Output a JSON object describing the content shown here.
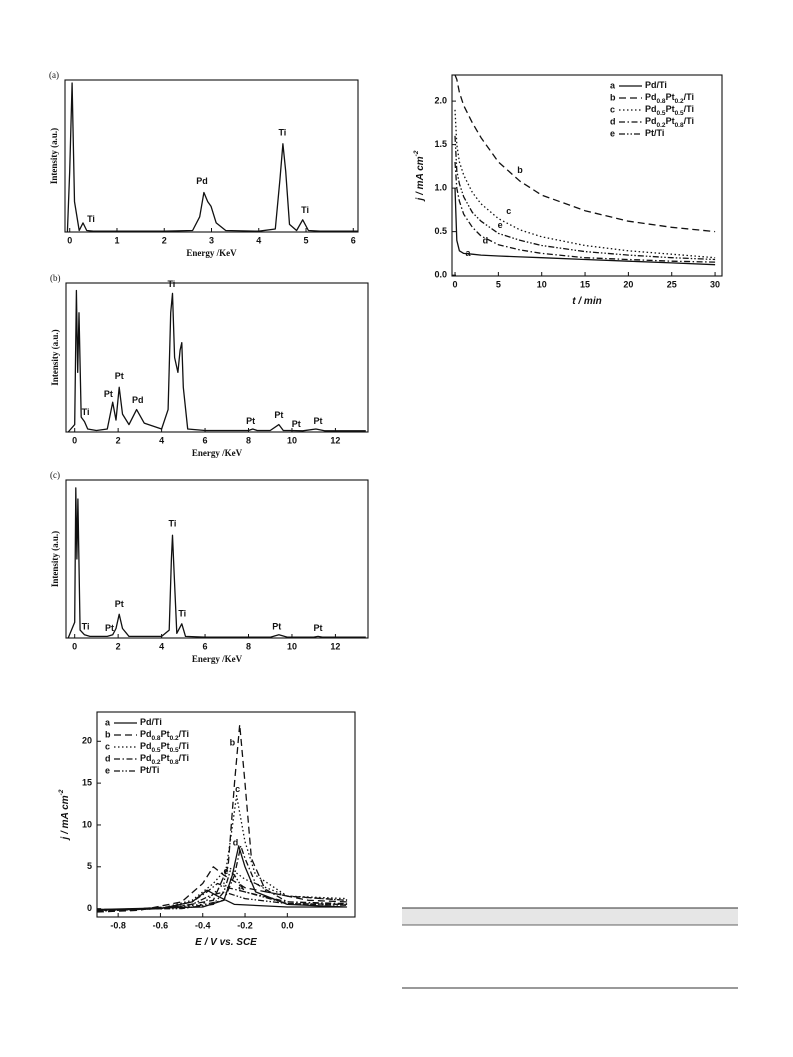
{
  "chart_data": [
    {
      "type": "line",
      "panel_label": "(a)",
      "x_label": "Energy /KeV",
      "y_label": "Intensity (a.u.)",
      "color": "#111111",
      "xlim": [
        -0.1,
        6.1
      ],
      "ylim": [
        0,
        100
      ],
      "xticks": [
        0,
        1,
        2,
        3,
        4,
        5,
        6
      ],
      "x": [
        -0.05,
        0,
        0.05,
        0.1,
        0.2,
        0.28,
        0.36,
        0.5,
        1,
        2,
        2.6,
        2.75,
        2.84,
        2.92,
        2.99,
        3.1,
        3.3,
        4,
        4.35,
        4.45,
        4.51,
        4.57,
        4.65,
        4.8,
        4.93,
        5.05,
        5.3,
        6,
        6.1
      ],
      "values": [
        0,
        40,
        98,
        20,
        1,
        6,
        1,
        0.5,
        0.5,
        0.5,
        1,
        10,
        26,
        20,
        17,
        6,
        1,
        0.5,
        2,
        35,
        58,
        40,
        5,
        1,
        8,
        1,
        0.5,
        0.5,
        0.5
      ],
      "annotations": [
        {
          "text": "Ti",
          "x": 0.45,
          "y": 8
        },
        {
          "text": "Pd",
          "x": 2.8,
          "y": 33
        },
        {
          "text": "Ti",
          "x": 4.5,
          "y": 65
        },
        {
          "text": "Ti",
          "x": 4.98,
          "y": 14
        }
      ]
    },
    {
      "type": "line",
      "panel_label": "(b)",
      "x_label": "Energy /KeV",
      "y_label": "Intensity (a.u.)",
      "color": "#111111",
      "xlim": [
        -0.4,
        13.5
      ],
      "ylim": [
        0,
        100
      ],
      "xticks": [
        0,
        2,
        4,
        6,
        8,
        10,
        12
      ],
      "x": [
        -0.3,
        0,
        0.08,
        0.14,
        0.2,
        0.3,
        0.45,
        0.6,
        1,
        1.5,
        1.75,
        1.9,
        2.05,
        2.2,
        2.5,
        2.85,
        3.2,
        4,
        4.3,
        4.42,
        4.5,
        4.6,
        4.75,
        4.85,
        4.93,
        5.0,
        5.2,
        6,
        8,
        8.2,
        8.4,
        9,
        9.4,
        9.6,
        9.9,
        10.5,
        11.1,
        11.5,
        13.4
      ],
      "values": [
        0,
        5,
        95,
        40,
        80,
        10,
        7,
        2,
        1,
        2,
        20,
        8,
        30,
        12,
        5,
        15,
        6,
        2,
        15,
        80,
        93,
        50,
        40,
        55,
        60,
        30,
        2,
        1,
        1,
        2,
        1,
        1,
        5,
        1,
        1,
        0.8,
        2,
        0.8,
        0.8
      ],
      "annotations": [
        {
          "text": "Ti",
          "x": 0.5,
          "y": 13
        },
        {
          "text": "Pt",
          "x": 1.55,
          "y": 25
        },
        {
          "text": "Pt",
          "x": 2.05,
          "y": 37
        },
        {
          "text": "Pd",
          "x": 2.9,
          "y": 21
        },
        {
          "text": "Ti",
          "x": 4.45,
          "y": 99
        },
        {
          "text": "Pt",
          "x": 8.1,
          "y": 7
        },
        {
          "text": "Pt",
          "x": 9.4,
          "y": 11
        },
        {
          "text": "Pt",
          "x": 10.2,
          "y": 5
        },
        {
          "text": "Pt",
          "x": 11.2,
          "y": 7
        }
      ]
    },
    {
      "type": "line",
      "panel_label": "(c)",
      "x_label": "Energy /KeV",
      "y_label": "Intensity (a.u.)",
      "color": "#111111",
      "xlim": [
        -0.4,
        13.5
      ],
      "ylim": [
        0,
        100
      ],
      "xticks": [
        0,
        2,
        4,
        6,
        8,
        10,
        12
      ],
      "x": [
        -0.3,
        0,
        0.05,
        0.1,
        0.15,
        0.25,
        0.45,
        0.7,
        1.5,
        1.75,
        1.9,
        2.05,
        2.2,
        2.5,
        4,
        4.35,
        4.45,
        4.5,
        4.58,
        4.7,
        4.93,
        5.1,
        6,
        9,
        9.4,
        9.8,
        11,
        11.2,
        11.4,
        13.4
      ],
      "values": [
        0,
        10,
        95,
        50,
        88,
        5,
        2,
        1,
        1,
        2,
        6,
        15,
        6,
        1,
        1,
        5,
        50,
        65,
        40,
        3,
        9,
        1,
        0.5,
        0.5,
        2,
        0.5,
        0.5,
        1,
        0.5,
        0.5
      ],
      "annotations": [
        {
          "text": "Ti",
          "x": 0.5,
          "y": 7
        },
        {
          "text": "Pt",
          "x": 1.6,
          "y": 6
        },
        {
          "text": "Pt",
          "x": 2.05,
          "y": 21
        },
        {
          "text": "Ti",
          "x": 4.5,
          "y": 72
        },
        {
          "text": "Ti",
          "x": 4.95,
          "y": 15
        },
        {
          "text": "Pt",
          "x": 9.3,
          "y": 7
        },
        {
          "text": "Pt",
          "x": 11.2,
          "y": 6
        }
      ]
    },
    {
      "type": "line",
      "x_label": "E / V vs. SCE",
      "y_label": "j / mA cm-2",
      "legend": "upper left",
      "xlim": [
        -0.9,
        0.32
      ],
      "ylim": [
        -1,
        23.5
      ],
      "xticks": [
        -0.8,
        -0.6,
        -0.4,
        -0.2,
        {
          "value": 0,
          "label": "0.0"
        }
      ],
      "yticks": [
        0,
        5,
        10,
        15,
        20
      ],
      "series": [
        {
          "name": "Pd/Ti",
          "label": "a",
          "style": "solid",
          "color": "#111111",
          "label_at": [
            -0.22,
            2.6
          ],
          "x": [
            -0.9,
            -0.6,
            -0.45,
            -0.38,
            -0.33,
            -0.25,
            0,
            0.28,
            0.28,
            0,
            -0.15,
            -0.2,
            -0.23,
            -0.26,
            -0.3,
            -0.4,
            -0.9
          ],
          "values": [
            -0.2,
            0,
            0.8,
            2.2,
            1.5,
            0.5,
            0.2,
            0.2,
            0.2,
            0.5,
            2,
            5,
            7.5,
            4,
            1,
            0.2,
            -0.1
          ]
        },
        {
          "name": "Pd0.8Pt0.2/Ti",
          "label": "b",
          "style": "dashed",
          "color": "#111111",
          "label_at": [
            -0.26,
            19.8
          ],
          "x": [
            -0.9,
            -0.7,
            -0.5,
            -0.4,
            -0.35,
            -0.3,
            -0.2,
            0,
            0.28,
            0.28,
            0.1,
            -0.1,
            -0.17,
            -0.2,
            -0.225,
            -0.25,
            -0.28,
            -0.35,
            -0.5,
            -0.7,
            -0.9
          ],
          "values": [
            -0.4,
            -0.2,
            0.8,
            3,
            5,
            4,
            2.5,
            1.5,
            1,
            0.8,
            1,
            2,
            6,
            15,
            22,
            15,
            5,
            1,
            0.3,
            0,
            -0.2
          ]
        },
        {
          "name": "Pd0.5Pt0.5/Ti",
          "label": "c",
          "style": "dotted",
          "color": "#111111",
          "label_at": [
            -0.235,
            14.2
          ],
          "x": [
            -0.9,
            -0.6,
            -0.45,
            -0.35,
            -0.28,
            -0.2,
            0,
            0.28,
            0.28,
            0,
            -0.15,
            -0.2,
            -0.24,
            -0.27,
            -0.3,
            -0.4,
            -0.6,
            -0.9
          ],
          "values": [
            -0.3,
            0,
            1,
            3,
            5,
            3.5,
            1.5,
            1.2,
            1,
            1.5,
            4,
            8,
            13.5,
            8,
            3,
            0.5,
            0,
            -0.2
          ]
        },
        {
          "name": "Pd0.2Pt0.8/Ti",
          "label": "d",
          "style": "dashdot",
          "color": "#111111",
          "label_at": [
            -0.245,
            7.8
          ],
          "x": [
            -0.9,
            -0.6,
            -0.45,
            -0.38,
            -0.33,
            -0.28,
            -0.2,
            0,
            0.28,
            0.28,
            0,
            -0.15,
            -0.2,
            -0.22,
            -0.25,
            -0.3,
            -0.45,
            -0.9
          ],
          "values": [
            -0.3,
            0,
            0.8,
            2,
            3,
            2.5,
            2,
            0.8,
            0.6,
            0.5,
            0.8,
            3,
            6,
            7.5,
            4,
            1,
            0.2,
            -0.2
          ]
        },
        {
          "name": "Pt/Ti",
          "label": "e",
          "style": "dashdotdot",
          "color": "#111111",
          "label_at": [
            -0.29,
            4.4
          ],
          "x": [
            -0.9,
            -0.6,
            -0.45,
            -0.37,
            -0.3,
            -0.2,
            0,
            0.28,
            0.28,
            0,
            -0.2,
            -0.25,
            -0.27,
            -0.3,
            -0.35,
            -0.5,
            -0.9
          ],
          "values": [
            -0.2,
            0,
            0.5,
            1.5,
            2,
            1.2,
            0.6,
            0.5,
            0.4,
            0.6,
            2,
            4,
            4.5,
            2,
            0.5,
            0,
            -0.1
          ]
        }
      ]
    },
    {
      "type": "line",
      "x_label": "t / min",
      "y_label": "j / mA cm-2",
      "legend": "upper right",
      "xlim": [
        -0.35,
        30.8
      ],
      "ylim": [
        -0.01,
        2.3
      ],
      "xticks": [
        0,
        5,
        10,
        15,
        20,
        25,
        30
      ],
      "yticks": [
        {
          "value": 0,
          "label": "0.0"
        },
        0.5,
        {
          "value": 1,
          "label": "1.0"
        },
        1.5,
        {
          "value": 2,
          "label": "2.0"
        }
      ],
      "x": [
        0,
        0.2,
        0.5,
        1,
        2,
        3,
        5,
        7.5,
        10,
        15,
        20,
        25,
        30
      ],
      "series": [
        {
          "name": "Pd/Ti",
          "label": "a",
          "style": "solid",
          "color": "#111111",
          "label_at": [
            1.5,
            0.25
          ],
          "values": [
            1.0,
            0.4,
            0.28,
            0.25,
            0.24,
            0.23,
            0.22,
            0.21,
            0.2,
            0.18,
            0.16,
            0.14,
            0.12
          ]
        },
        {
          "name": "Pd0.8Pt0.2/Ti",
          "label": "b",
          "style": "dashed",
          "color": "#111111",
          "label_at": [
            7.5,
            1.2
          ],
          "values": [
            2.3,
            2.25,
            2.1,
            1.95,
            1.75,
            1.58,
            1.3,
            1.08,
            0.92,
            0.74,
            0.62,
            0.55,
            0.5
          ]
        },
        {
          "name": "Pd0.5Pt0.5/Ti",
          "label": "c",
          "style": "dotted",
          "color": "#111111",
          "label_at": [
            6.2,
            0.73
          ],
          "values": [
            1.9,
            1.5,
            1.3,
            1.15,
            0.95,
            0.82,
            0.65,
            0.52,
            0.44,
            0.34,
            0.28,
            0.24,
            0.2
          ]
        },
        {
          "name": "Pd0.2Pt0.8/Ti",
          "label": "d",
          "style": "dashdot",
          "color": "#111111",
          "label_at": [
            3.5,
            0.39
          ],
          "values": [
            1.3,
            1.0,
            0.85,
            0.7,
            0.55,
            0.45,
            0.35,
            0.29,
            0.25,
            0.2,
            0.18,
            0.16,
            0.15
          ]
        },
        {
          "name": "Pt/Ti",
          "label": "e",
          "style": "dashdotdot",
          "color": "#111111",
          "label_at": [
            5.2,
            0.57
          ],
          "values": [
            1.6,
            1.2,
            1.05,
            0.9,
            0.72,
            0.62,
            0.48,
            0.4,
            0.34,
            0.27,
            0.23,
            0.2,
            0.18
          ]
        }
      ]
    }
  ]
}
